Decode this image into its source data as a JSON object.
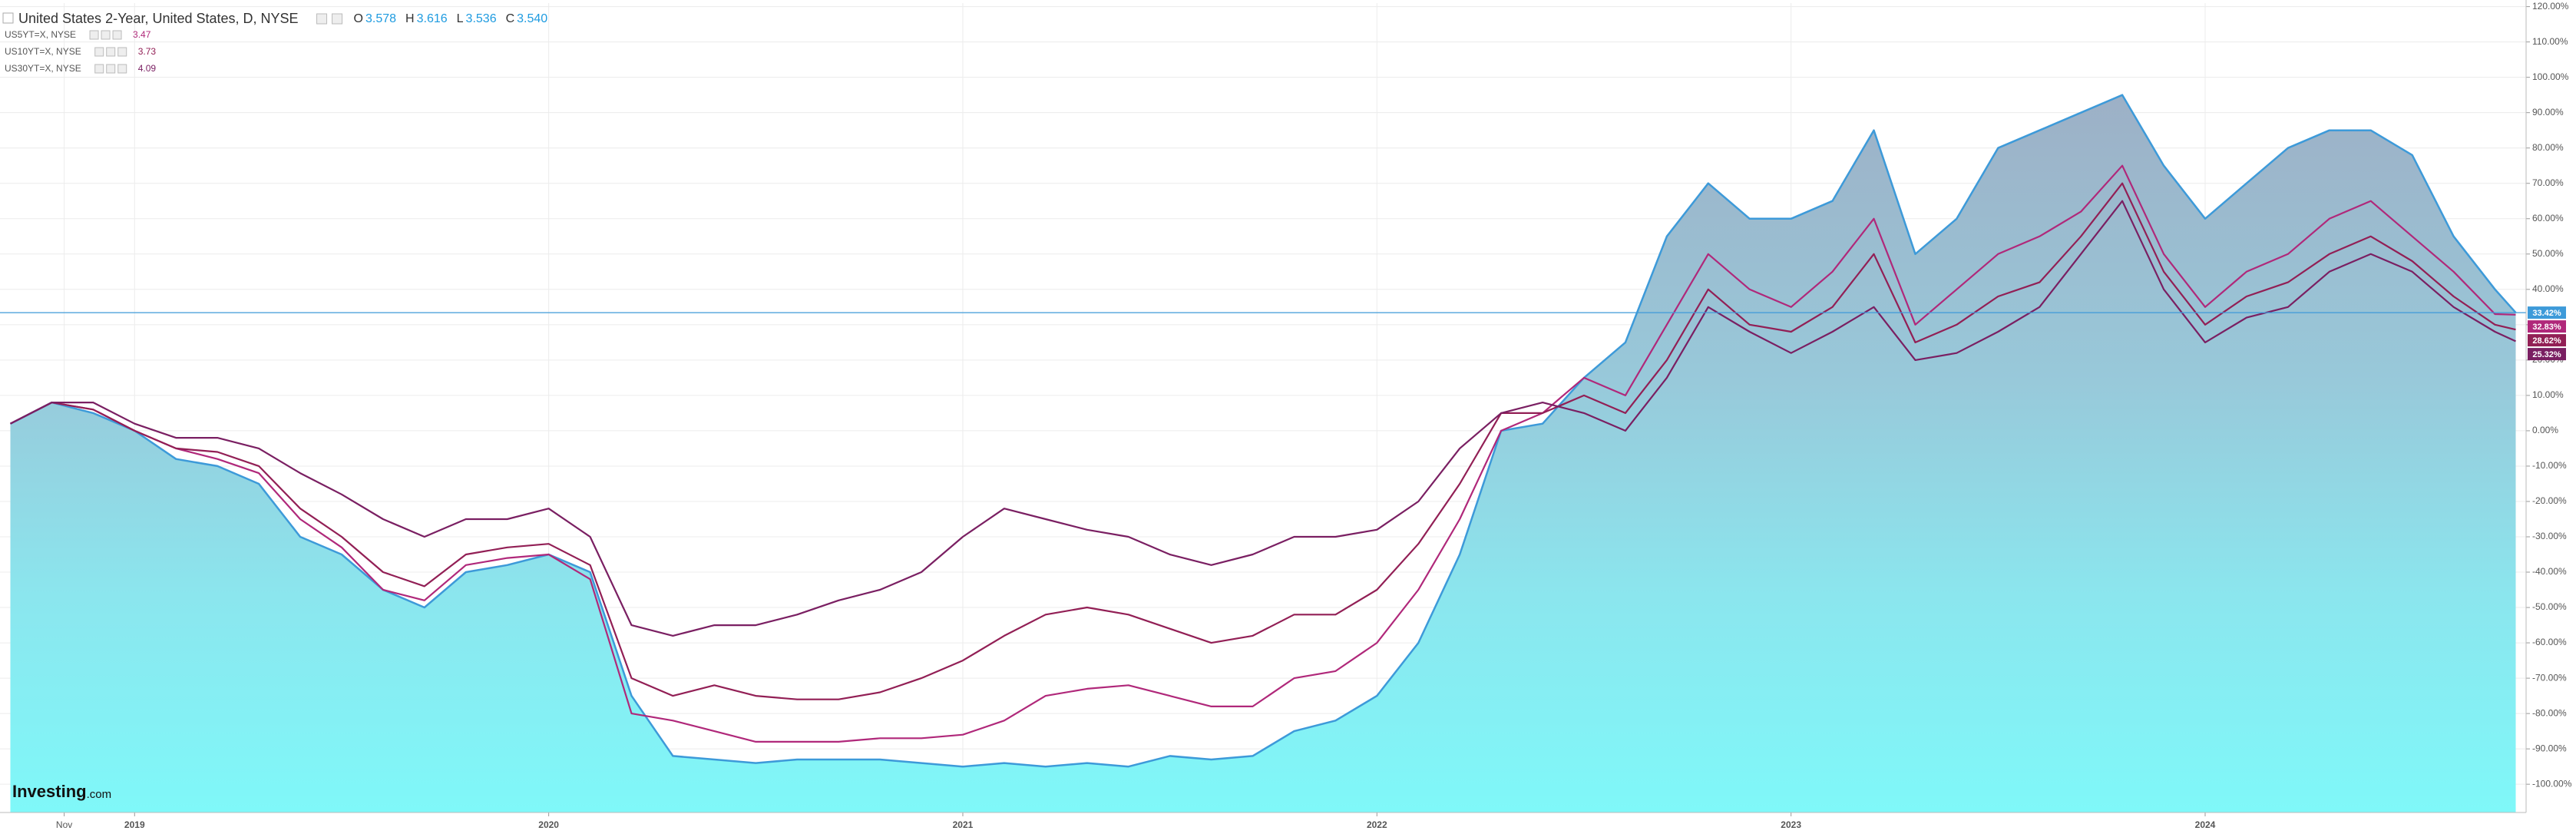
{
  "chart_data": {
    "type": "line",
    "x": [
      2018.7,
      2018.8,
      2018.9,
      2019.0,
      2019.1,
      2019.2,
      2019.3,
      2019.4,
      2019.5,
      2019.6,
      2019.7,
      2019.8,
      2019.9,
      2020.0,
      2020.1,
      2020.2,
      2020.3,
      2020.4,
      2020.5,
      2020.6,
      2020.7,
      2020.8,
      2020.9,
      2021.0,
      2021.1,
      2021.2,
      2021.3,
      2021.4,
      2021.5,
      2021.6,
      2021.7,
      2021.8,
      2021.9,
      2022.0,
      2022.1,
      2022.2,
      2022.3,
      2022.4,
      2022.5,
      2022.6,
      2022.7,
      2022.8,
      2022.9,
      2023.0,
      2023.1,
      2023.2,
      2023.3,
      2023.4,
      2023.5,
      2023.6,
      2023.7,
      2023.8,
      2023.9,
      2024.0,
      2024.1,
      2024.2,
      2024.3,
      2024.4,
      2024.5,
      2024.6,
      2024.7,
      2024.75
    ],
    "series": [
      {
        "name": "United States 2-Year, United States, D, NYSE",
        "color": "#3d9ad9",
        "area": true,
        "open": 3.578,
        "high": 3.616,
        "low": 3.536,
        "close": {
          "value": 3.54,
          "label": "3.540"
        },
        "ohlc_keys": [
          "O",
          "H",
          "L",
          "C"
        ],
        "last_label": "33.42%",
        "values": [
          2,
          8,
          5,
          0,
          -8,
          -10,
          -15,
          -30,
          -35,
          -45,
          -50,
          -40,
          -38,
          -35,
          -40,
          -75,
          -92,
          -93,
          -94,
          -93,
          -93,
          -93,
          -94,
          -95,
          -94,
          -95,
          -94,
          -95,
          -92,
          -93,
          -92,
          -85,
          -82,
          -75,
          -60,
          -35,
          0,
          2,
          15,
          25,
          55,
          70,
          60,
          60,
          65,
          85,
          50,
          60,
          80,
          85,
          90,
          95,
          75,
          60,
          70,
          80,
          85,
          85,
          78,
          55,
          40,
          33.42
        ]
      },
      {
        "name": "US5YT=X, NYSE",
        "color": "#b0287a",
        "last_quote": 3.47,
        "last_label": "32.83%",
        "values": [
          2,
          8,
          6,
          0,
          -5,
          -8,
          -12,
          -25,
          -33,
          -45,
          -48,
          -38,
          -36,
          -35,
          -42,
          -80,
          -82,
          -85,
          -88,
          -88,
          -88,
          -87,
          -87,
          -86,
          -82,
          -75,
          -73,
          -72,
          -75,
          -78,
          -78,
          -70,
          -68,
          -60,
          -45,
          -25,
          0,
          5,
          15,
          10,
          30,
          50,
          40,
          35,
          45,
          60,
          30,
          40,
          50,
          55,
          62,
          75,
          50,
          35,
          45,
          50,
          60,
          65,
          55,
          45,
          33,
          32.83
        ]
      },
      {
        "name": "US10YT=X, NYSE",
        "color": "#921f55",
        "last_quote": 3.73,
        "last_label": "28.62%",
        "values": [
          2,
          8,
          6,
          0,
          -5,
          -6,
          -10,
          -22,
          -30,
          -40,
          -44,
          -35,
          -33,
          -32,
          -38,
          -70,
          -75,
          -72,
          -75,
          -76,
          -76,
          -74,
          -70,
          -65,
          -58,
          -52,
          -50,
          -52,
          -56,
          -60,
          -58,
          -52,
          -52,
          -45,
          -32,
          -15,
          5,
          5,
          10,
          5,
          20,
          40,
          30,
          28,
          35,
          50,
          25,
          30,
          38,
          42,
          55,
          70,
          45,
          30,
          38,
          42,
          50,
          55,
          48,
          38,
          30,
          28.62
        ]
      },
      {
        "name": "US30YT=X, NYSE",
        "color": "#7a1f62",
        "last_quote": 4.09,
        "last_label": "25.32%",
        "values": [
          2,
          8,
          8,
          2,
          -2,
          -2,
          -5,
          -12,
          -18,
          -25,
          -30,
          -25,
          -25,
          -22,
          -30,
          -55,
          -58,
          -55,
          -55,
          -52,
          -48,
          -45,
          -40,
          -30,
          -22,
          -25,
          -28,
          -30,
          -35,
          -38,
          -35,
          -30,
          -30,
          -28,
          -20,
          -5,
          5,
          8,
          5,
          0,
          15,
          35,
          28,
          22,
          28,
          35,
          20,
          22,
          28,
          35,
          50,
          65,
          40,
          25,
          32,
          35,
          45,
          50,
          45,
          35,
          28,
          25.32
        ]
      }
    ],
    "xlim": [
      2018.675,
      2024.775
    ],
    "xticks": [
      {
        "value": 2018.83,
        "label": "Nov"
      },
      2019,
      2020,
      2021,
      2022,
      2023,
      2024
    ],
    "ylim": [
      -108,
      121
    ],
    "yticks": [
      {
        "value": 120,
        "label": "120.00%"
      },
      {
        "value": 110,
        "label": "110.00%"
      },
      {
        "value": 100,
        "label": "100.00%"
      },
      {
        "value": 90,
        "label": "90.00%"
      },
      {
        "value": 80,
        "label": "80.00%"
      },
      {
        "value": 70,
        "label": "70.00%"
      },
      {
        "value": 60,
        "label": "60.00%"
      },
      {
        "value": 50,
        "label": "50.00%"
      },
      {
        "value": 40,
        "label": "40.00%"
      },
      {
        "value": 30,
        "label": "30.00%"
      },
      {
        "value": 20,
        "label": "20.00%"
      },
      {
        "value": 10,
        "label": "10.00%"
      },
      {
        "value": 0,
        "label": "0.00%"
      },
      {
        "value": -10,
        "label": "-10.00%"
      },
      {
        "value": -20,
        "label": "-20.00%"
      },
      {
        "value": -30,
        "label": "-30.00%"
      },
      {
        "value": -40,
        "label": "-40.00%"
      },
      {
        "value": -50,
        "label": "-50.00%"
      },
      {
        "value": -60,
        "label": "-60.00%"
      },
      {
        "value": -70,
        "label": "-70.00%"
      },
      {
        "value": -80,
        "label": "-80.00%"
      },
      {
        "value": -90,
        "label": "-90.00%"
      },
      {
        "value": -100,
        "label": "-100.00%"
      }
    ],
    "grid": true,
    "brand": "Investing",
    "brand_suffix": ".com"
  }
}
